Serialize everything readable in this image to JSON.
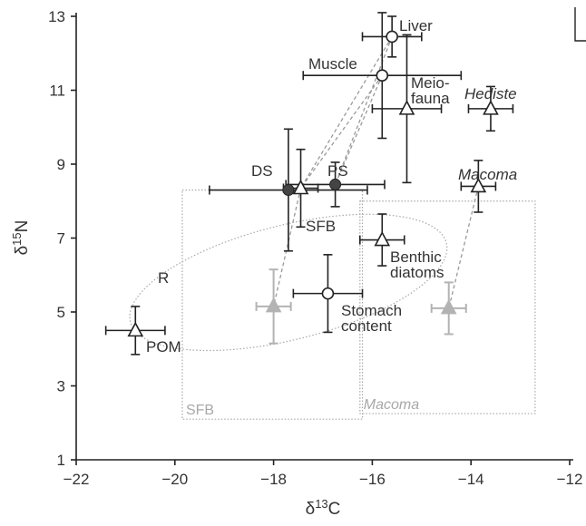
{
  "chart_data": {
    "type": "scatter",
    "title": "",
    "xlabel": "δ13C",
    "ylabel": "δ15N",
    "xlim": [
      -22,
      -12
    ],
    "ylim": [
      1,
      13
    ],
    "xticks": [
      -22,
      -20,
      -18,
      -16,
      -14,
      -12
    ],
    "yticks": [
      1,
      3,
      5,
      7,
      9,
      11,
      13
    ],
    "grid": false,
    "legend": "none",
    "colors": {
      "black": "#222222",
      "gray": "#b3b3b3",
      "gray_box": "#a8a8a8",
      "dash": "#9a9a9a",
      "dark_fill": "#444444"
    },
    "points": [
      {
        "id": "liver",
        "label": "Liver",
        "marker": "circle-open",
        "x": -15.6,
        "y": 12.45,
        "xerr": 0.6,
        "yerr": 0.55
      },
      {
        "id": "muscle",
        "label": "Muscle",
        "marker": "circle-open",
        "x": -15.8,
        "y": 11.4,
        "xerr": 1.6,
        "yerr": 1.7
      },
      {
        "id": "meiofauna",
        "label": "Meio-\nfauna",
        "marker": "triangle-open",
        "x": -15.3,
        "y": 10.5,
        "xerr": 0.7,
        "yerr": 2.0
      },
      {
        "id": "hediste",
        "label": "Hediste",
        "italic": true,
        "marker": "triangle-open",
        "x": -13.6,
        "y": 10.5,
        "xerr": 0.45,
        "yerr": 0.6
      },
      {
        "id": "macoma",
        "label": "Macoma",
        "italic": true,
        "marker": "triangle-open",
        "x": -13.85,
        "y": 8.4,
        "xerr": 0.35,
        "yerr": 0.7
      },
      {
        "id": "ds",
        "label": "DS",
        "marker": "circle-filled",
        "x": -17.7,
        "y": 8.3,
        "xerr": 1.6,
        "yerr": 1.65
      },
      {
        "id": "ps",
        "label": "PS",
        "marker": "circle-filled",
        "x": -16.75,
        "y": 8.45,
        "xerr": 1.0,
        "yerr": 0.6
      },
      {
        "id": "sfb",
        "label": "SFB",
        "marker": "triangle-open",
        "x": -17.45,
        "y": 8.35,
        "xerr": 0.35,
        "yerr": 1.05
      },
      {
        "id": "benthic",
        "label": "Benthic\ndiatoms",
        "marker": "triangle-open",
        "x": -15.8,
        "y": 6.95,
        "xerr": 0.45,
        "yerr": 0.7
      },
      {
        "id": "stomach",
        "label": "Stomach\ncontent",
        "marker": "circle-open",
        "x": -16.9,
        "y": 5.5,
        "xerr": 0.7,
        "yerr": 1.05
      },
      {
        "id": "pom",
        "label": "POM",
        "marker": "triangle-open",
        "x": -20.8,
        "y": 4.5,
        "xerr": 0.6,
        "yerr": 0.65
      },
      {
        "id": "sfb-corrected",
        "label": "",
        "marker": "triangle-gray",
        "x": -18.0,
        "y": 5.15,
        "xerr": 0.35,
        "yerr": 1.0
      },
      {
        "id": "macoma-corrected",
        "label": "",
        "marker": "triangle-gray",
        "x": -14.45,
        "y": 5.1,
        "xerr": 0.35,
        "yerr": 0.7
      }
    ],
    "connectors": [
      {
        "from": "muscle",
        "to": "sfb"
      },
      {
        "from": "liver",
        "to": "sfb"
      },
      {
        "from": "muscle",
        "to": "ps"
      },
      {
        "from": "liver",
        "to": "ps"
      },
      {
        "from": "sfb",
        "to": "sfb-corrected"
      },
      {
        "from": "macoma",
        "to": "macoma-corrected"
      }
    ],
    "boxes": [
      {
        "id": "sfb-box",
        "label": "SFB",
        "italic": false,
        "x0": -19.85,
        "x1": -16.2,
        "y0": 2.1,
        "y1": 8.3
      },
      {
        "id": "macoma-box",
        "label": "Macoma",
        "italic": true,
        "x0": -16.25,
        "x1": -12.7,
        "y0": 2.25,
        "y1": 8.0
      }
    ],
    "ellipse": {
      "label": "R",
      "cx": -17.7,
      "cy": 5.8,
      "rx": 3.3,
      "ry": 1.55,
      "angle_deg": -14
    }
  }
}
